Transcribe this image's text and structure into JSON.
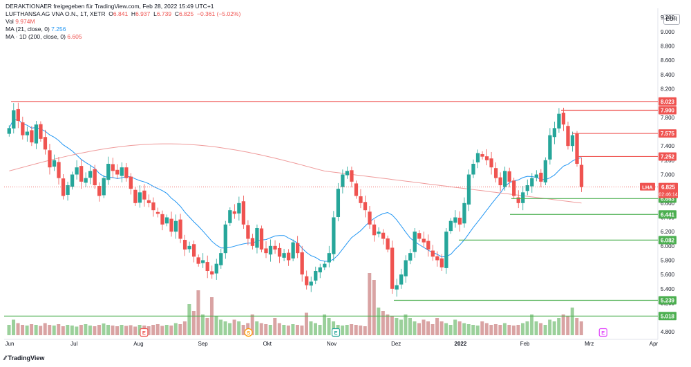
{
  "header": {
    "title": "DERAKTIONAER freigegeben für TradingView.com, Feb 28, 2022 15:49 UTC+1",
    "symbol": "LUFTHANSA AG VNA O.N., 1T, XETR",
    "open_label": "O",
    "open": "6.841",
    "high_label": "H",
    "high": "6.937",
    "low_label": "L",
    "low": "6.739",
    "close_label": "C",
    "close": "6.825",
    "change": "−0.361 (−5.02%)",
    "vol_label": "Vol",
    "vol": "9.974M",
    "ma21_label": "MA (21, close, 0)",
    "ma21": "7.256",
    "ma200_label": "MA · 1D (200, close, 0)",
    "ma200": "6.605"
  },
  "footer": {
    "brand": "TradingView"
  },
  "currency_button": "EUR",
  "chart_data": {
    "type": "candlestick",
    "y_ticks": [
      "4.800",
      "5.000",
      "5.200",
      "5.400",
      "5.600",
      "5.800",
      "6.000",
      "6.200",
      "6.400",
      "6.600",
      "6.800",
      "7.000",
      "7.200",
      "7.400",
      "7.600",
      "7.800",
      "8.000",
      "8.200",
      "8.400",
      "8.600",
      "8.800",
      "9.000",
      "9.200"
    ],
    "ylim": [
      4.75,
      9.25
    ],
    "x_ticks": [
      "Jun",
      "Jul",
      "Aug",
      "Sep",
      "Okt",
      "Nov",
      "Dez",
      "2022",
      "Feb",
      "Mrz",
      "Apr"
    ],
    "price_label": {
      "symbol": "LHA",
      "value": "6.825",
      "countdown": "02:46:14"
    },
    "levels": [
      {
        "value": "8.023",
        "color": "#ef5350"
      },
      {
        "value": "7.900",
        "color": "#ef5350"
      },
      {
        "value": "7.575",
        "color": "#ef5350"
      },
      {
        "value": "7.252",
        "color": "#ef5350"
      },
      {
        "value": "6.663",
        "color": "#4caf50"
      },
      {
        "value": "6.441",
        "color": "#4caf50"
      },
      {
        "value": "6.082",
        "color": "#4caf50"
      },
      {
        "value": "5.239",
        "color": "#4caf50"
      },
      {
        "value": "5.018",
        "color": "#4caf50"
      }
    ],
    "event_markers": [
      {
        "label": "E",
        "month": "Aug",
        "color": "#ef5350"
      },
      {
        "label": "S",
        "month": "Sep",
        "color": "#ff9800"
      },
      {
        "label": "E",
        "month": "Nov",
        "color": "#26a69a"
      },
      {
        "label": "E",
        "month": "Mrz",
        "color": "#e040fb"
      }
    ],
    "close_series": [
      7.65,
      7.9,
      7.75,
      7.55,
      7.6,
      7.45,
      7.7,
      7.5,
      7.35,
      7.1,
      7.2,
      6.95,
      6.7,
      6.85,
      7.0,
      7.1,
      6.9,
      6.95,
      7.05,
      6.85,
      6.7,
      6.95,
      7.15,
      7.05,
      7.0,
      7.1,
      6.95,
      6.8,
      6.6,
      6.75,
      6.65,
      6.6,
      6.5,
      6.45,
      6.3,
      6.4,
      6.2,
      6.35,
      6.1,
      5.95,
      6.0,
      5.85,
      5.75,
      5.8,
      5.65,
      5.6,
      5.75,
      5.9,
      6.3,
      6.5,
      6.45,
      6.6,
      6.3,
      6.1,
      6.0,
      6.25,
      5.95,
      5.9,
      6.0,
      5.95,
      5.85,
      5.9,
      5.8,
      6.05,
      5.9,
      5.6,
      5.45,
      5.5,
      5.65,
      5.7,
      5.75,
      5.9,
      6.4,
      6.8,
      7.0,
      7.05,
      6.9,
      6.7,
      6.6,
      6.5,
      6.3,
      6.15,
      6.2,
      6.1,
      5.95,
      5.4,
      5.45,
      5.6,
      5.8,
      5.9,
      6.2,
      6.1,
      6.05,
      5.95,
      5.85,
      5.8,
      5.7,
      6.2,
      6.35,
      6.4,
      6.3,
      6.6,
      7.0,
      7.15,
      7.3,
      7.25,
      7.2,
      7.1,
      6.95,
      6.85,
      7.05,
      6.9,
      6.7,
      6.6,
      6.75,
      6.85,
      6.95,
      7.0,
      6.9,
      7.2,
      7.55,
      7.65,
      7.85,
      7.7,
      7.4,
      7.55,
      7.15,
      6.825
    ],
    "volume_series": [
      0.3,
      0.45,
      0.35,
      0.3,
      0.28,
      0.32,
      0.3,
      0.27,
      0.35,
      0.3,
      0.28,
      0.32,
      0.26,
      0.3,
      0.28,
      0.25,
      0.3,
      0.32,
      0.28,
      0.26,
      0.3,
      0.34,
      0.3,
      0.28,
      0.26,
      0.3,
      0.27,
      0.29,
      0.25,
      0.3,
      0.28,
      0.26,
      0.3,
      0.32,
      0.27,
      0.3,
      0.28,
      0.35,
      0.32,
      0.4,
      0.9,
      0.7,
      1.3,
      0.6,
      0.5,
      1.1,
      0.55,
      0.45,
      0.4,
      0.35,
      0.45,
      0.4,
      0.3,
      0.35,
      0.6,
      0.4,
      0.35,
      0.32,
      0.3,
      0.5,
      0.35,
      0.3,
      0.28,
      0.32,
      0.3,
      0.28,
      0.65,
      0.4,
      0.35,
      0.3,
      0.6,
      0.5,
      0.4,
      0.3,
      0.28,
      0.3,
      0.32,
      0.3,
      0.28,
      0.26,
      1.8,
      1.6,
      0.8,
      0.7,
      0.6,
      0.55,
      0.5,
      0.45,
      0.6,
      0.5,
      0.4,
      0.35,
      0.45,
      0.4,
      0.32,
      0.5,
      0.4,
      0.35,
      0.3,
      0.45,
      0.4,
      0.35,
      0.32,
      0.3,
      0.28,
      0.4,
      0.35,
      0.3,
      0.32,
      0.3,
      0.35,
      0.3,
      0.28,
      0.3,
      0.35,
      0.4,
      0.6,
      0.4,
      0.35,
      0.3,
      0.45,
      0.4,
      0.5,
      0.6,
      0.55,
      0.8,
      0.5,
      0.4
    ]
  }
}
